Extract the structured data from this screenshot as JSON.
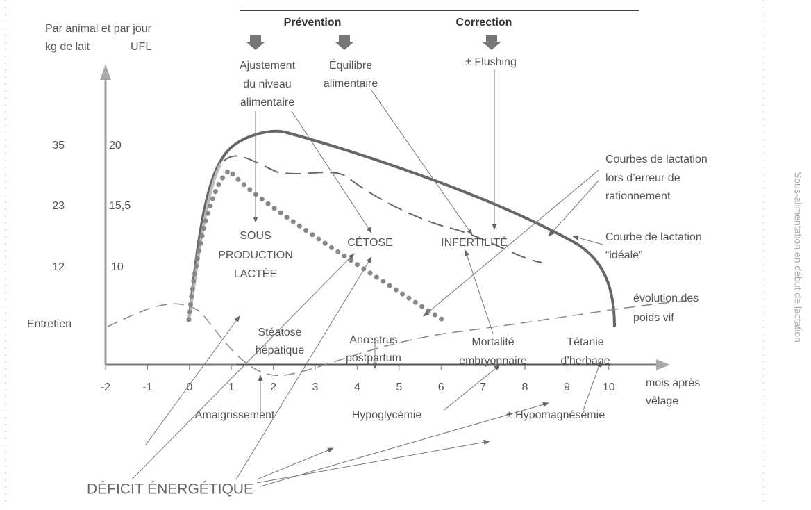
{
  "header": {
    "prevention": "Prévention",
    "correction": "Correction"
  },
  "axis": {
    "y_title": "Par animal et par jour",
    "y_unit_milk": "kg de lait",
    "y_unit_ufl": "UFL",
    "y_ticks_milk": [
      "35",
      "23",
      "12",
      "Entretien"
    ],
    "y_ticks_ufl": [
      "20",
      "15,5",
      "10"
    ],
    "x_ticks": [
      "-2",
      "-1",
      "0",
      "1",
      "2",
      "3",
      "4",
      "5",
      "6",
      "7",
      "8",
      "9",
      "10"
    ],
    "x_title": [
      "mois après",
      "vêlage"
    ]
  },
  "actions": {
    "adjustment": [
      "Ajustement",
      "du niveau",
      "alimentaire"
    ],
    "balance": [
      "Équilibre",
      "alimentaire"
    ],
    "flushing": "± Flushing"
  },
  "disorders": {
    "under_production": [
      "SOUS",
      "PRODUCTION",
      "LACTÉE"
    ],
    "ketosis": "CÉTOSE",
    "infertility": "INFERTILITÉ",
    "steatosis": [
      "Stéatose",
      "hépatique"
    ],
    "anoestrus": [
      "Anœstrus",
      "postpartum"
    ],
    "mortality": [
      "Mortalité",
      "embryonnaire"
    ],
    "tetany": [
      "Tétanie",
      "d’herbage"
    ]
  },
  "curves": {
    "error": [
      "Courbes de lactation",
      "lors d’erreur de",
      "rationnement"
    ],
    "ideal": [
      "Courbe de lactation",
      "“idéale”"
    ],
    "weight": [
      "évolution des",
      "poids vif"
    ]
  },
  "causes": {
    "thinning": "Amaigrissement",
    "hypoglycemia": "Hypoglycémie",
    "hypomagnesemia": "± Hypomagnésémie"
  },
  "deficit": "DÉFICIT ÉNERGÉTIQUE",
  "side_title": "Sous-alimentation en début de lactation"
}
